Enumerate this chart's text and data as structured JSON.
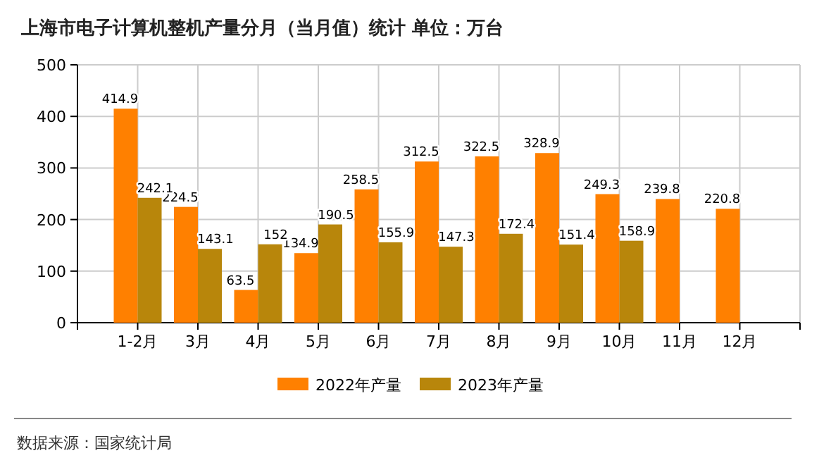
{
  "chart_data": {
    "type": "bar",
    "title": "上海市电子计算机整机产量分月（当月值）统计  单位：万台",
    "categories": [
      "1-2月",
      "3月",
      "4月",
      "5月",
      "6月",
      "7月",
      "8月",
      "9月",
      "10月",
      "11月",
      "12月"
    ],
    "series": [
      {
        "name": "2022年产量",
        "color": "#ff8000",
        "values": [
          414.9,
          224.5,
          63.5,
          134.9,
          258.5,
          312.5,
          322.5,
          328.9,
          249.3,
          239.8,
          220.8
        ]
      },
      {
        "name": "2023年产量",
        "color": "#b8860b",
        "values": [
          242.1,
          143.1,
          152,
          190.5,
          155.9,
          147.3,
          172.4,
          151.4,
          158.9,
          null,
          null
        ]
      }
    ],
    "ylim": [
      0,
      500
    ],
    "yticks": [
      0,
      100,
      200,
      300,
      400,
      500
    ],
    "grid": true,
    "legend": "bottom",
    "data_labels": true,
    "annotations": [
      "数据来源：国家统计局"
    ]
  }
}
